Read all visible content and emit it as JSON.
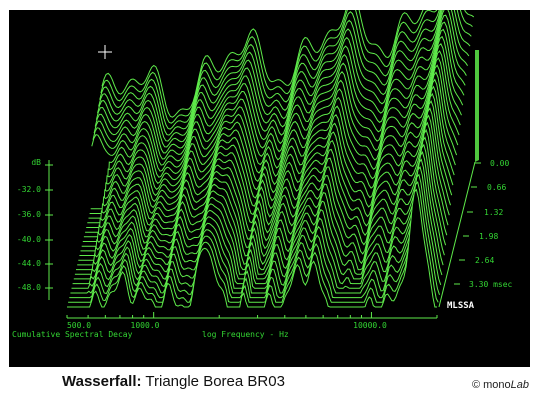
{
  "caption": {
    "title": "Wasserfall:",
    "subtitle": "Triangle Borea BR03"
  },
  "brand": {
    "symbol": "©",
    "mono": "mono",
    "lab": "Lab"
  },
  "chart_data": {
    "type": "waterfall",
    "title": "Cumulative Spectral Decay",
    "xlabel": "log Frequency - Hz",
    "ylabel": "dB",
    "time_unit": "msec",
    "mark": "MLSSA",
    "x_ticks": [
      "500.0",
      "1000.0",
      "10000.0"
    ],
    "db_ticks": [
      "dB",
      "-32.0",
      "-36.0",
      "-40.0",
      "-44.0",
      "-48.0"
    ],
    "time_ticks": [
      "0.00",
      "0.66",
      "1.32",
      "1.98",
      "2.64",
      "3.30 msec"
    ],
    "xlim": [
      400,
      20000
    ],
    "ylim_db": [
      -50,
      -26
    ],
    "time_range_msec": [
      0,
      3.3
    ],
    "slices": 32,
    "colors": {
      "background": "#000000",
      "trace": "#5eea4a",
      "axis_text": "#33d633"
    }
  }
}
